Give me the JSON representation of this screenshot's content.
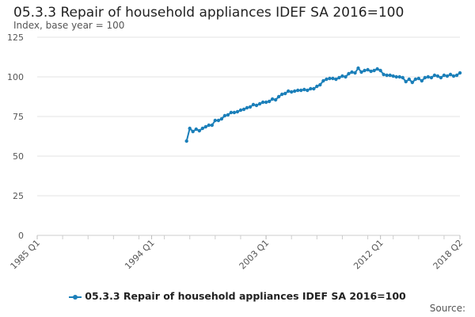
{
  "chart_data": {
    "type": "line",
    "title": "05.3.3 Repair of household appliances IDEF SA 2016=100",
    "subtitle": "Index, base year = 100",
    "ylim": [
      0,
      125
    ],
    "y_ticks": [
      "0",
      "25",
      "50",
      "75",
      "100",
      "125"
    ],
    "x_tick_labels": [
      "1985 Q1",
      "1994 Q1",
      "2003 Q1",
      "2012 Q1",
      "2018 Q2"
    ],
    "x_tick_positions": [
      1985.0,
      1994.0,
      2003.0,
      2012.0,
      2018.25
    ],
    "x_minor_ticks": [
      1985,
      1987,
      1989,
      1991,
      1993,
      1995,
      1997,
      1999,
      2001,
      2003,
      2005,
      2007,
      2009,
      2011,
      2013,
      2015,
      2017
    ],
    "xlim": [
      1985.0,
      2018.25
    ],
    "grid": true,
    "legend_position": "bottom",
    "series": [
      {
        "name": "05.3.3 Repair of household appliances IDEF SA 2016=100",
        "color": "#1b7fb9",
        "x": [
          1996.75,
          1997.0,
          1997.25,
          1997.5,
          1997.75,
          1998.0,
          1998.25,
          1998.5,
          1998.75,
          1999.0,
          1999.25,
          1999.5,
          1999.75,
          2000.0,
          2000.25,
          2000.5,
          2000.75,
          2001.0,
          2001.25,
          2001.5,
          2001.75,
          2002.0,
          2002.25,
          2002.5,
          2002.75,
          2003.0,
          2003.25,
          2003.5,
          2003.75,
          2004.0,
          2004.25,
          2004.5,
          2004.75,
          2005.0,
          2005.25,
          2005.5,
          2005.75,
          2006.0,
          2006.25,
          2006.5,
          2006.75,
          2007.0,
          2007.25,
          2007.5,
          2007.75,
          2008.0,
          2008.25,
          2008.5,
          2008.75,
          2009.0,
          2009.25,
          2009.5,
          2009.75,
          2010.0,
          2010.25,
          2010.5,
          2010.75,
          2011.0,
          2011.25,
          2011.5,
          2011.75,
          2012.0,
          2012.25,
          2012.5,
          2012.75,
          2013.0,
          2013.25,
          2013.5,
          2013.75,
          2014.0,
          2014.25,
          2014.5,
          2014.75,
          2015.0,
          2015.25,
          2015.5,
          2015.75,
          2016.0,
          2016.25,
          2016.5,
          2016.75,
          2017.0,
          2017.25,
          2017.5,
          2017.75,
          2018.0,
          2018.25
        ],
        "values": [
          59.5,
          67.5,
          65.5,
          67,
          66,
          67.5,
          68.5,
          69.5,
          69.5,
          72.5,
          72.5,
          73.5,
          75.5,
          76,
          77.5,
          77.5,
          78,
          79,
          79.5,
          80.5,
          81,
          82.5,
          82,
          83,
          84,
          84,
          84.5,
          86,
          85.5,
          87.5,
          89,
          89.5,
          91,
          90.5,
          91,
          91.5,
          91.5,
          92,
          91.5,
          92.5,
          92.5,
          94,
          95,
          97.5,
          98.5,
          99,
          99,
          98.5,
          99.5,
          100.5,
          100,
          102,
          103,
          102.5,
          105.5,
          103,
          104,
          104.5,
          103.5,
          104,
          105,
          104,
          101.5,
          101,
          101,
          100.5,
          100,
          100,
          99.5,
          97,
          98.5,
          96.5,
          98.5,
          99,
          97.5,
          99.5,
          100,
          99.5,
          101,
          100.5,
          99.5,
          101,
          100.5,
          101.5,
          100.5,
          101,
          102.5
        ]
      }
    ]
  },
  "legend": {
    "label": "05.3.3 Repair of household appliances IDEF SA 2016=100",
    "color": "#1b7fb9"
  },
  "source_label": "Source:"
}
